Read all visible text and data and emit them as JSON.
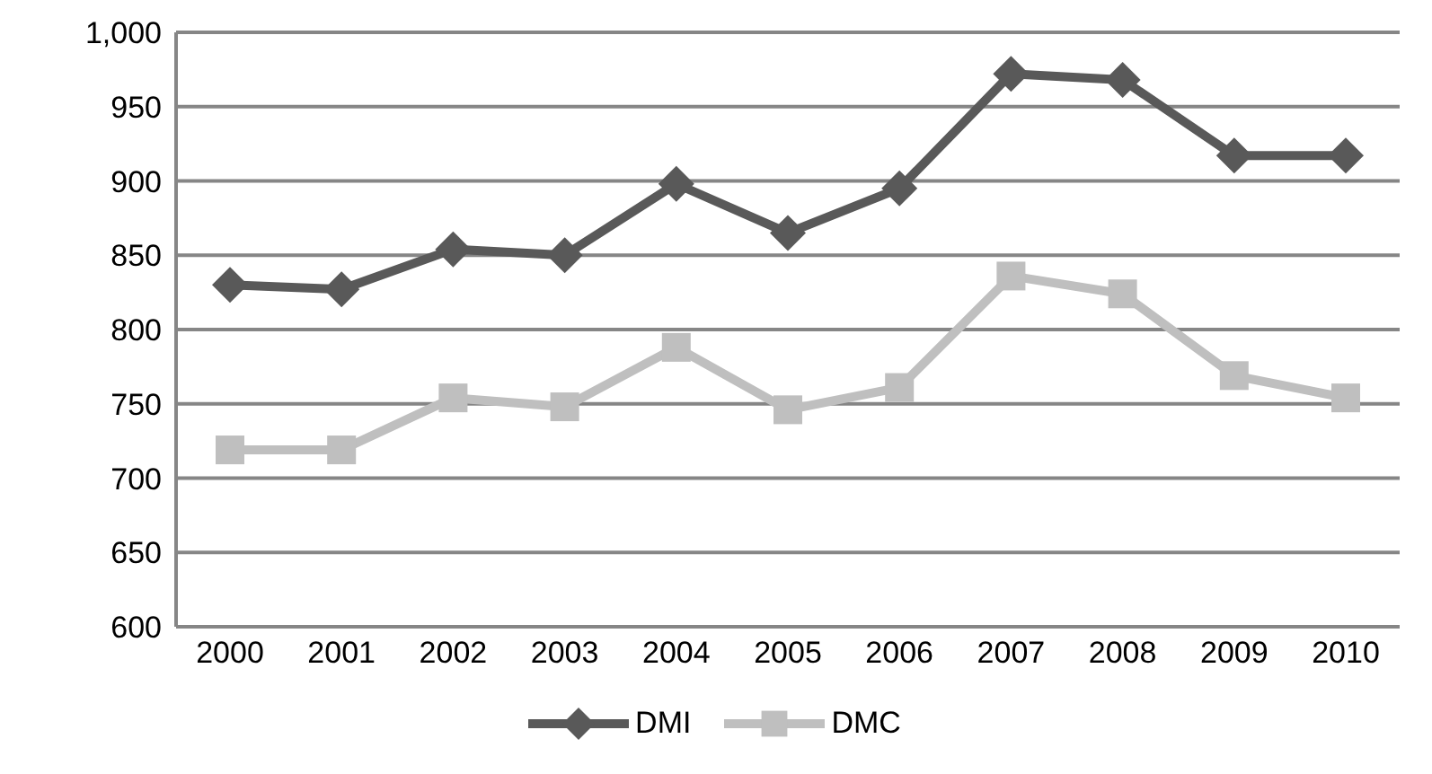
{
  "chart_data": {
    "type": "line",
    "categories": [
      "2000",
      "2001",
      "2002",
      "2003",
      "2004",
      "2005",
      "2006",
      "2007",
      "2008",
      "2009",
      "2010"
    ],
    "series": [
      {
        "name": "DMI",
        "color": "#595959",
        "marker": "diamond",
        "values": [
          830,
          827,
          854,
          850,
          898,
          865,
          895,
          972,
          968,
          917,
          917
        ]
      },
      {
        "name": "DMC",
        "color": "#bfbfbf",
        "marker": "square",
        "values": [
          719,
          719,
          754,
          748,
          788,
          746,
          761,
          836,
          824,
          769,
          754
        ]
      }
    ],
    "ylim": [
      600,
      1000
    ],
    "yticks": [
      600,
      650,
      700,
      750,
      800,
      850,
      900,
      950,
      {
        "value": 1000,
        "label": "1,000"
      }
    ],
    "grid": "y",
    "legend": "bottom",
    "line_style": "solid"
  }
}
